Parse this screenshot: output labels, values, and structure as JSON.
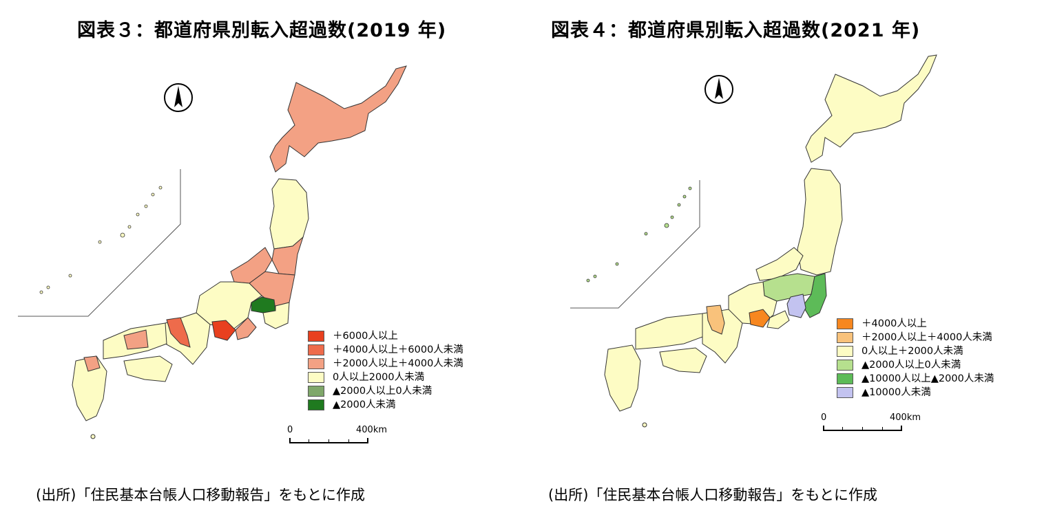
{
  "panels": [
    {
      "title": "図表３：都道府県別転入超過数(2019 年)",
      "legend": [
        {
          "label": "＋6000人以上",
          "color": "#e8401f"
        },
        {
          "label": "＋4000人以上＋6000人未満",
          "color": "#ee6b4b"
        },
        {
          "label": "＋2000人以上＋4000人未満",
          "color": "#f3a184"
        },
        {
          "label": "0人以上2000人未満",
          "color": "#fdfcc4"
        },
        {
          "label": "▲2000人以上0人未満",
          "color": "#7fa76a"
        },
        {
          "label": "▲2000人未満",
          "color": "#1f7a1f"
        }
      ],
      "scale": {
        "zero": "0",
        "distance": "400km"
      },
      "source": "(出所)「住民基本台帳人口移動報告」をもとに作成"
    },
    {
      "title": "図表４：都道府県別転入超過数(2021 年)",
      "legend": [
        {
          "label": "＋4000人以上",
          "color": "#f7871f"
        },
        {
          "label": "＋2000人以上＋4000人未満",
          "color": "#f9c27b"
        },
        {
          "label": "0人以上＋2000人未満",
          "color": "#fdfcc4"
        },
        {
          "label": "▲2000人以上0人未満",
          "color": "#b6e08e"
        },
        {
          "label": "▲10000人以上▲2000人未満",
          "color": "#5dbb58"
        },
        {
          "label": "▲10000人未満",
          "color": "#c3c3f0"
        }
      ],
      "scale": {
        "zero": "0",
        "distance": "400km"
      },
      "source": "(出所)「住民基本台帳人口移動報告」をもとに作成"
    }
  ]
}
